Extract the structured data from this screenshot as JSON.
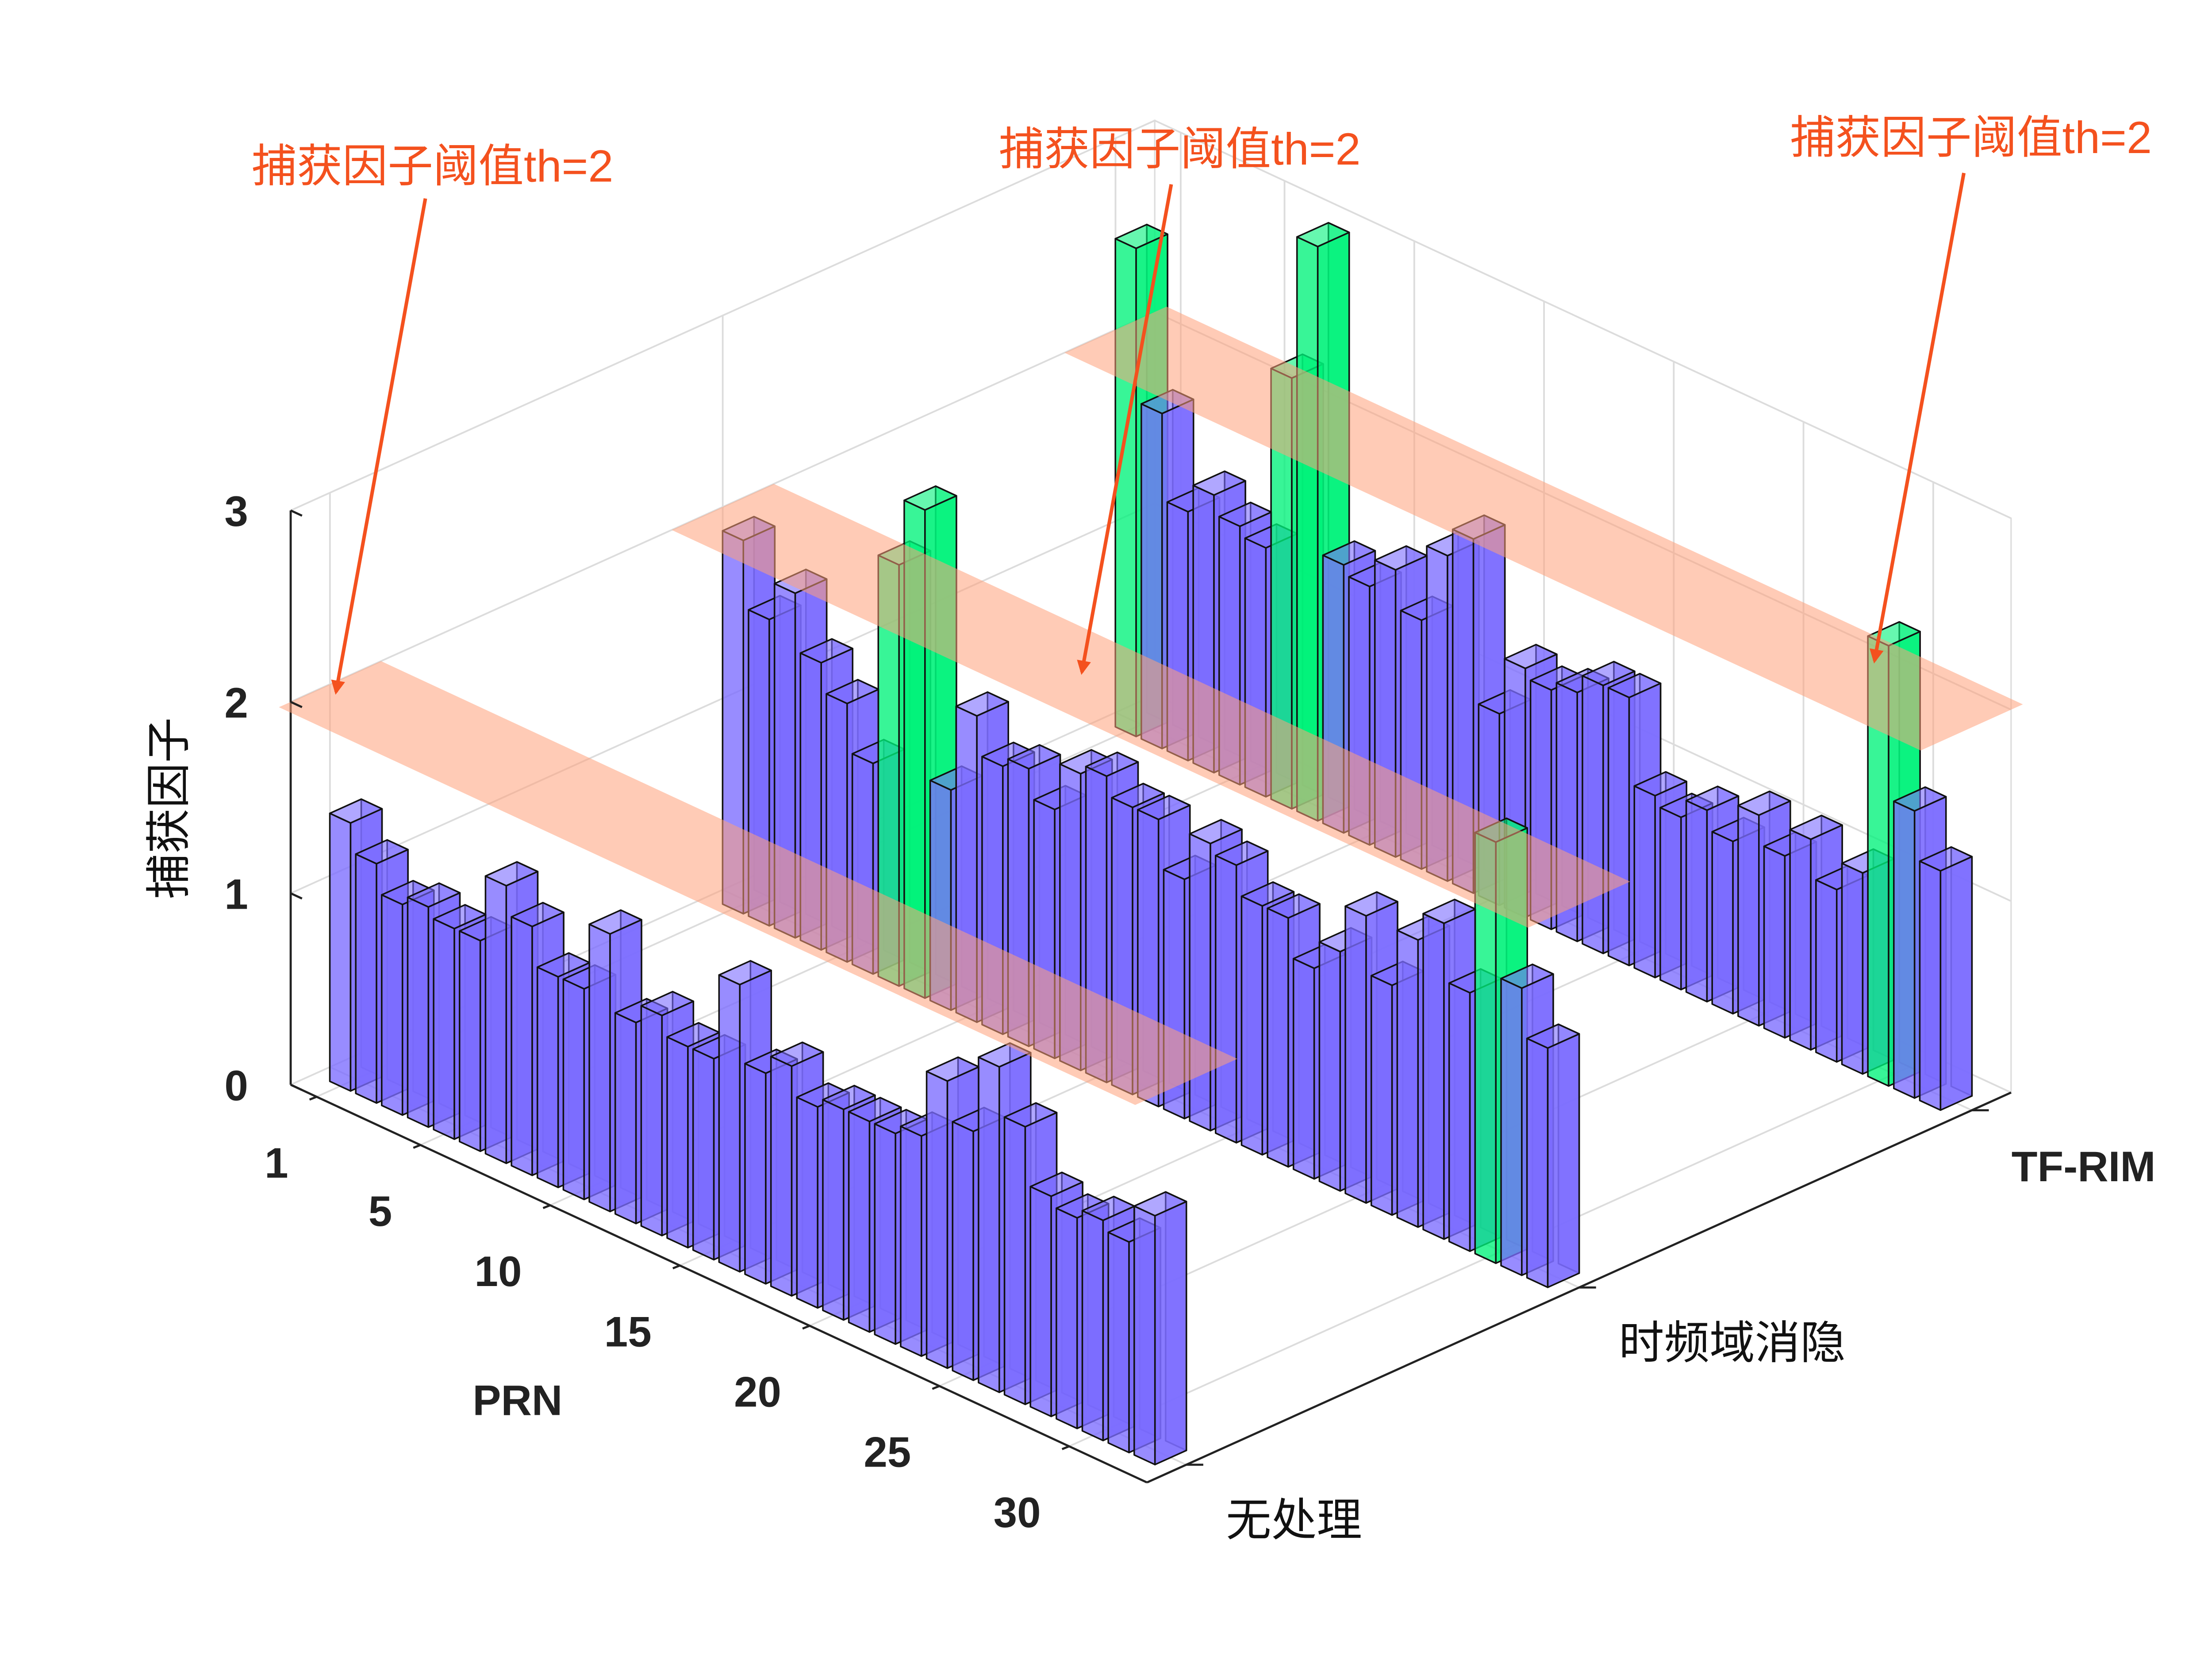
{
  "chart_data": {
    "type": "bar3d",
    "x": [
      1,
      2,
      3,
      4,
      5,
      6,
      7,
      8,
      9,
      10,
      11,
      12,
      13,
      14,
      15,
      16,
      17,
      18,
      19,
      20,
      21,
      22,
      23,
      24,
      25,
      26,
      27,
      28,
      29,
      30,
      31,
      32
    ],
    "xlim": [
      0,
      33
    ],
    "xticks": [
      1,
      5,
      10,
      15,
      20,
      25,
      30
    ],
    "xlabel": "PRN",
    "zlim": [
      0,
      3
    ],
    "zticks": [
      0,
      1,
      2,
      3
    ],
    "zlabel": "捕获因子",
    "series": [
      {
        "name": "无处理",
        "values": [
          1.4,
          1.25,
          1.1,
          1.15,
          1.1,
          1.1,
          1.45,
          1.3,
          1.1,
          1.1,
          1.45,
          1.05,
          1.15,
          1.05,
          1.05,
          1.5,
          1.1,
          1.2,
          1.05,
          1.1,
          1.1,
          1.1,
          1.15,
          1.5,
          1.3,
          1.7,
          1.45,
          1.15,
          1.1,
          1.15,
          1.1,
          1.3
        ]
      },
      {
        "name": "时频域消隐",
        "values": [
          1.95,
          1.6,
          1.8,
          1.5,
          1.35,
          1.1,
          2.2,
          2.55,
          1.15,
          1.6,
          1.4,
          1.45,
          1.3,
          1.55,
          1.6,
          1.5,
          1.5,
          1.25,
          1.5,
          1.45,
          1.3,
          1.3,
          1.1,
          1.25,
          1.5,
          1.2,
          1.5,
          1.65,
          1.35,
          2.2,
          1.5,
          1.25
        ]
      },
      {
        "name": "TF-RIM",
        "values": [
          2.55,
          1.75,
          1.3,
          1.45,
          1.35,
          1.3,
          2.25,
          3.0,
          1.4,
          1.35,
          1.5,
          1.3,
          1.7,
          1.85,
          1.0,
          1.3,
          1.25,
          1.3,
          1.4,
          1.4,
          0.95,
          0.9,
          1.0,
          0.9,
          1.1,
          0.95,
          1.1,
          0.9,
          1.05,
          2.3,
          1.5,
          1.25
        ]
      }
    ],
    "threshold": 2,
    "color": "#7b6cff",
    "highlight_color": "#00f27a",
    "threshold_color": "#ffa07a",
    "annotation_color": "#f4511e",
    "annotations": [
      {
        "text": "捕获因子阈值th=2"
      },
      {
        "text": "捕获因子阈值th=2"
      },
      {
        "text": "捕获因子阈值th=2"
      }
    ],
    "grid": true
  }
}
